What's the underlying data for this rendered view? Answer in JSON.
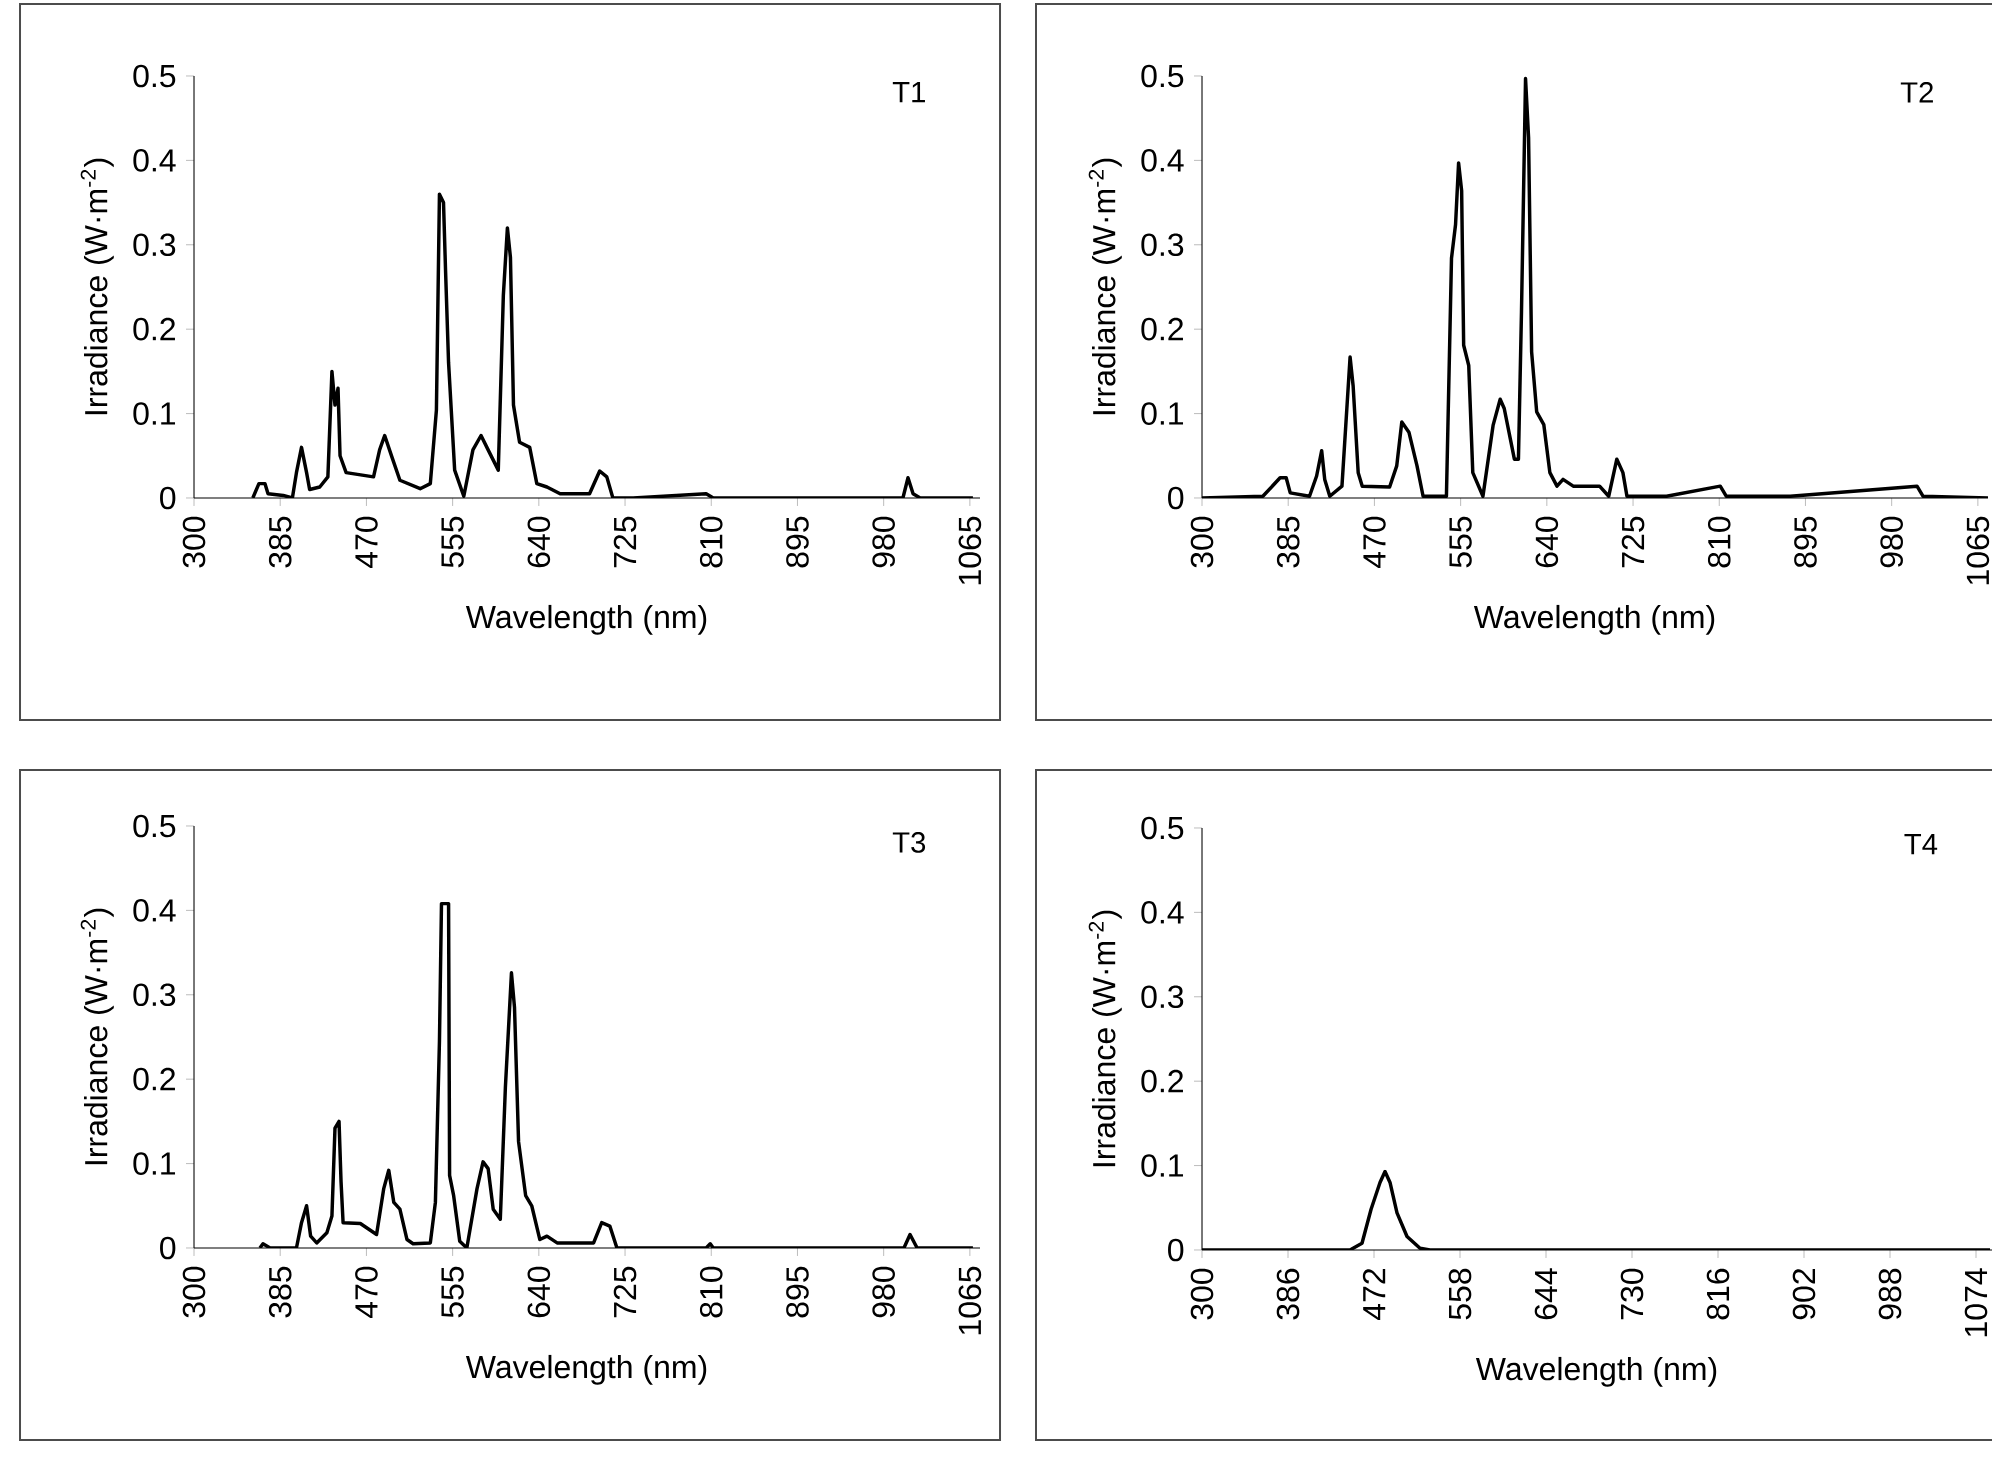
{
  "chart_data": [
    {
      "type": "line",
      "title": "T1",
      "xlabel": "Wavelength (nm)",
      "ylabel": "Irradiance (W·m$^{-2}$)",
      "color": "#000000",
      "x": [
        358,
        364,
        370,
        373,
        388,
        397,
        401,
        406,
        411,
        414,
        424,
        432,
        436,
        439,
        442,
        444,
        450,
        477,
        483,
        488,
        495,
        503,
        523,
        533,
        539,
        542,
        546,
        548,
        551,
        557,
        566,
        575,
        583,
        590,
        600,
        605,
        609,
        612,
        615,
        621,
        631,
        638,
        648,
        661,
        674,
        690,
        700,
        707,
        713,
        733,
        805,
        812,
        999,
        1004,
        1009,
        1016,
        1068
      ],
      "values": [
        0,
        0.017,
        0.017,
        0.005,
        0.003,
        0,
        0.03,
        0.06,
        0.03,
        0.01,
        0.013,
        0.025,
        0.15,
        0.11,
        0.13,
        0.05,
        0.03,
        0.025,
        0.057,
        0.074,
        0.049,
        0.021,
        0.011,
        0.017,
        0.104,
        0.36,
        0.35,
        0.27,
        0.16,
        0.033,
        0.002,
        0.057,
        0.074,
        0.057,
        0.033,
        0.24,
        0.32,
        0.285,
        0.11,
        0.066,
        0.06,
        0.017,
        0.013,
        0.005,
        0.005,
        0.005,
        0.032,
        0.025,
        0,
        0,
        0.005,
        0,
        0,
        0.024,
        0.005,
        0,
        0
      ],
      "xlim": [
        300,
        1075
      ],
      "ylim": [
        0,
        0.5
      ],
      "xticks": [
        300,
        385,
        470,
        555,
        640,
        725,
        810,
        895,
        980,
        1065
      ],
      "yticks": [
        0,
        0.1,
        0.2,
        0.3,
        0.4,
        0.5
      ]
    },
    {
      "type": "line",
      "title": "T2",
      "xlabel": "Wavelength (nm)",
      "ylabel": "Irradiance (W·m$^{-2}$)",
      "color": "#000000",
      "x": [
        300,
        360,
        377,
        383,
        387,
        406,
        413,
        418,
        421,
        426,
        438,
        446,
        449,
        454,
        458,
        485,
        492,
        497,
        504,
        512,
        518,
        541,
        546,
        550,
        553,
        556,
        558,
        563,
        567,
        577,
        587,
        594,
        598,
        604,
        608,
        612,
        615,
        619,
        622,
        625,
        630,
        637,
        643,
        650,
        656,
        666,
        692,
        701,
        709,
        715,
        719,
        758,
        811,
        817,
        880,
        1005,
        1011,
        1075
      ],
      "values": [
        0,
        0.002,
        0.024,
        0.024,
        0.006,
        0.002,
        0.026,
        0.056,
        0.022,
        0.002,
        0.014,
        0.167,
        0.133,
        0.03,
        0.014,
        0.013,
        0.038,
        0.09,
        0.078,
        0.038,
        0.002,
        0.002,
        0.284,
        0.324,
        0.397,
        0.364,
        0.181,
        0.157,
        0.03,
        0.002,
        0.086,
        0.117,
        0.106,
        0.07,
        0.046,
        0.046,
        0.22,
        0.497,
        0.427,
        0.173,
        0.102,
        0.087,
        0.03,
        0.014,
        0.022,
        0.014,
        0.014,
        0.002,
        0.046,
        0.03,
        0.002,
        0.002,
        0.014,
        0.002,
        0.002,
        0.014,
        0.002,
        0
      ],
      "xlim": [
        300,
        1075
      ],
      "ylim": [
        0,
        0.5
      ],
      "xticks": [
        300,
        385,
        470,
        555,
        640,
        725,
        810,
        895,
        980,
        1065
      ],
      "yticks": [
        0,
        0.1,
        0.2,
        0.3,
        0.4,
        0.5
      ]
    },
    {
      "type": "line",
      "title": "T3",
      "xlabel": "Wavelength (nm)",
      "ylabel": "Irradiance (W·m$^{-2}$)",
      "color": "#000000",
      "x": [
        365,
        368,
        375,
        401,
        406,
        411,
        415,
        421,
        431,
        436,
        439,
        443,
        445,
        447,
        464,
        480,
        487,
        492,
        497,
        503,
        510,
        516,
        533,
        538,
        542,
        544,
        551,
        552,
        556,
        562,
        569,
        579,
        585,
        590,
        595,
        602,
        607,
        613,
        616,
        620,
        627,
        633,
        641,
        648,
        658,
        694,
        702,
        710,
        717,
        805,
        809,
        812,
        1000,
        1006,
        1013,
        1068
      ],
      "values": [
        0,
        0.005,
        0,
        0,
        0.03,
        0.05,
        0.014,
        0.006,
        0.018,
        0.038,
        0.142,
        0.15,
        0.078,
        0.03,
        0.029,
        0.016,
        0.07,
        0.092,
        0.054,
        0.046,
        0.01,
        0.005,
        0.006,
        0.054,
        0.245,
        0.408,
        0.408,
        0.086,
        0.062,
        0.008,
        0,
        0.07,
        0.102,
        0.094,
        0.046,
        0.034,
        0.19,
        0.326,
        0.285,
        0.126,
        0.062,
        0.05,
        0.01,
        0.014,
        0.006,
        0.006,
        0.03,
        0.026,
        0,
        0,
        0.005,
        0,
        0,
        0.016,
        0,
        0
      ],
      "xlim": [
        300,
        1075
      ],
      "ylim": [
        0,
        0.5
      ],
      "xticks": [
        300,
        385,
        470,
        555,
        640,
        725,
        810,
        895,
        980,
        1065
      ],
      "yticks": [
        0,
        0.1,
        0.2,
        0.3,
        0.4,
        0.5
      ]
    },
    {
      "type": "line",
      "title": "T4",
      "xlabel": "Wavelength (nm)",
      "ylabel": "Irradiance (W·m$^{-2}$)",
      "color": "#000000",
      "x": [
        300,
        448,
        460,
        469,
        478,
        483,
        488,
        495,
        505,
        518,
        528,
        1088
      ],
      "values": [
        0,
        0,
        0.008,
        0.048,
        0.08,
        0.093,
        0.08,
        0.044,
        0.016,
        0.002,
        0,
        0
      ],
      "xlim": [
        300,
        1090
      ],
      "ylim": [
        0,
        0.5
      ],
      "xticks": [
        300,
        386,
        472,
        558,
        644,
        730,
        816,
        902,
        988,
        1074
      ],
      "yticks": [
        0,
        0.1,
        0.2,
        0.3,
        0.4,
        0.5
      ]
    }
  ]
}
